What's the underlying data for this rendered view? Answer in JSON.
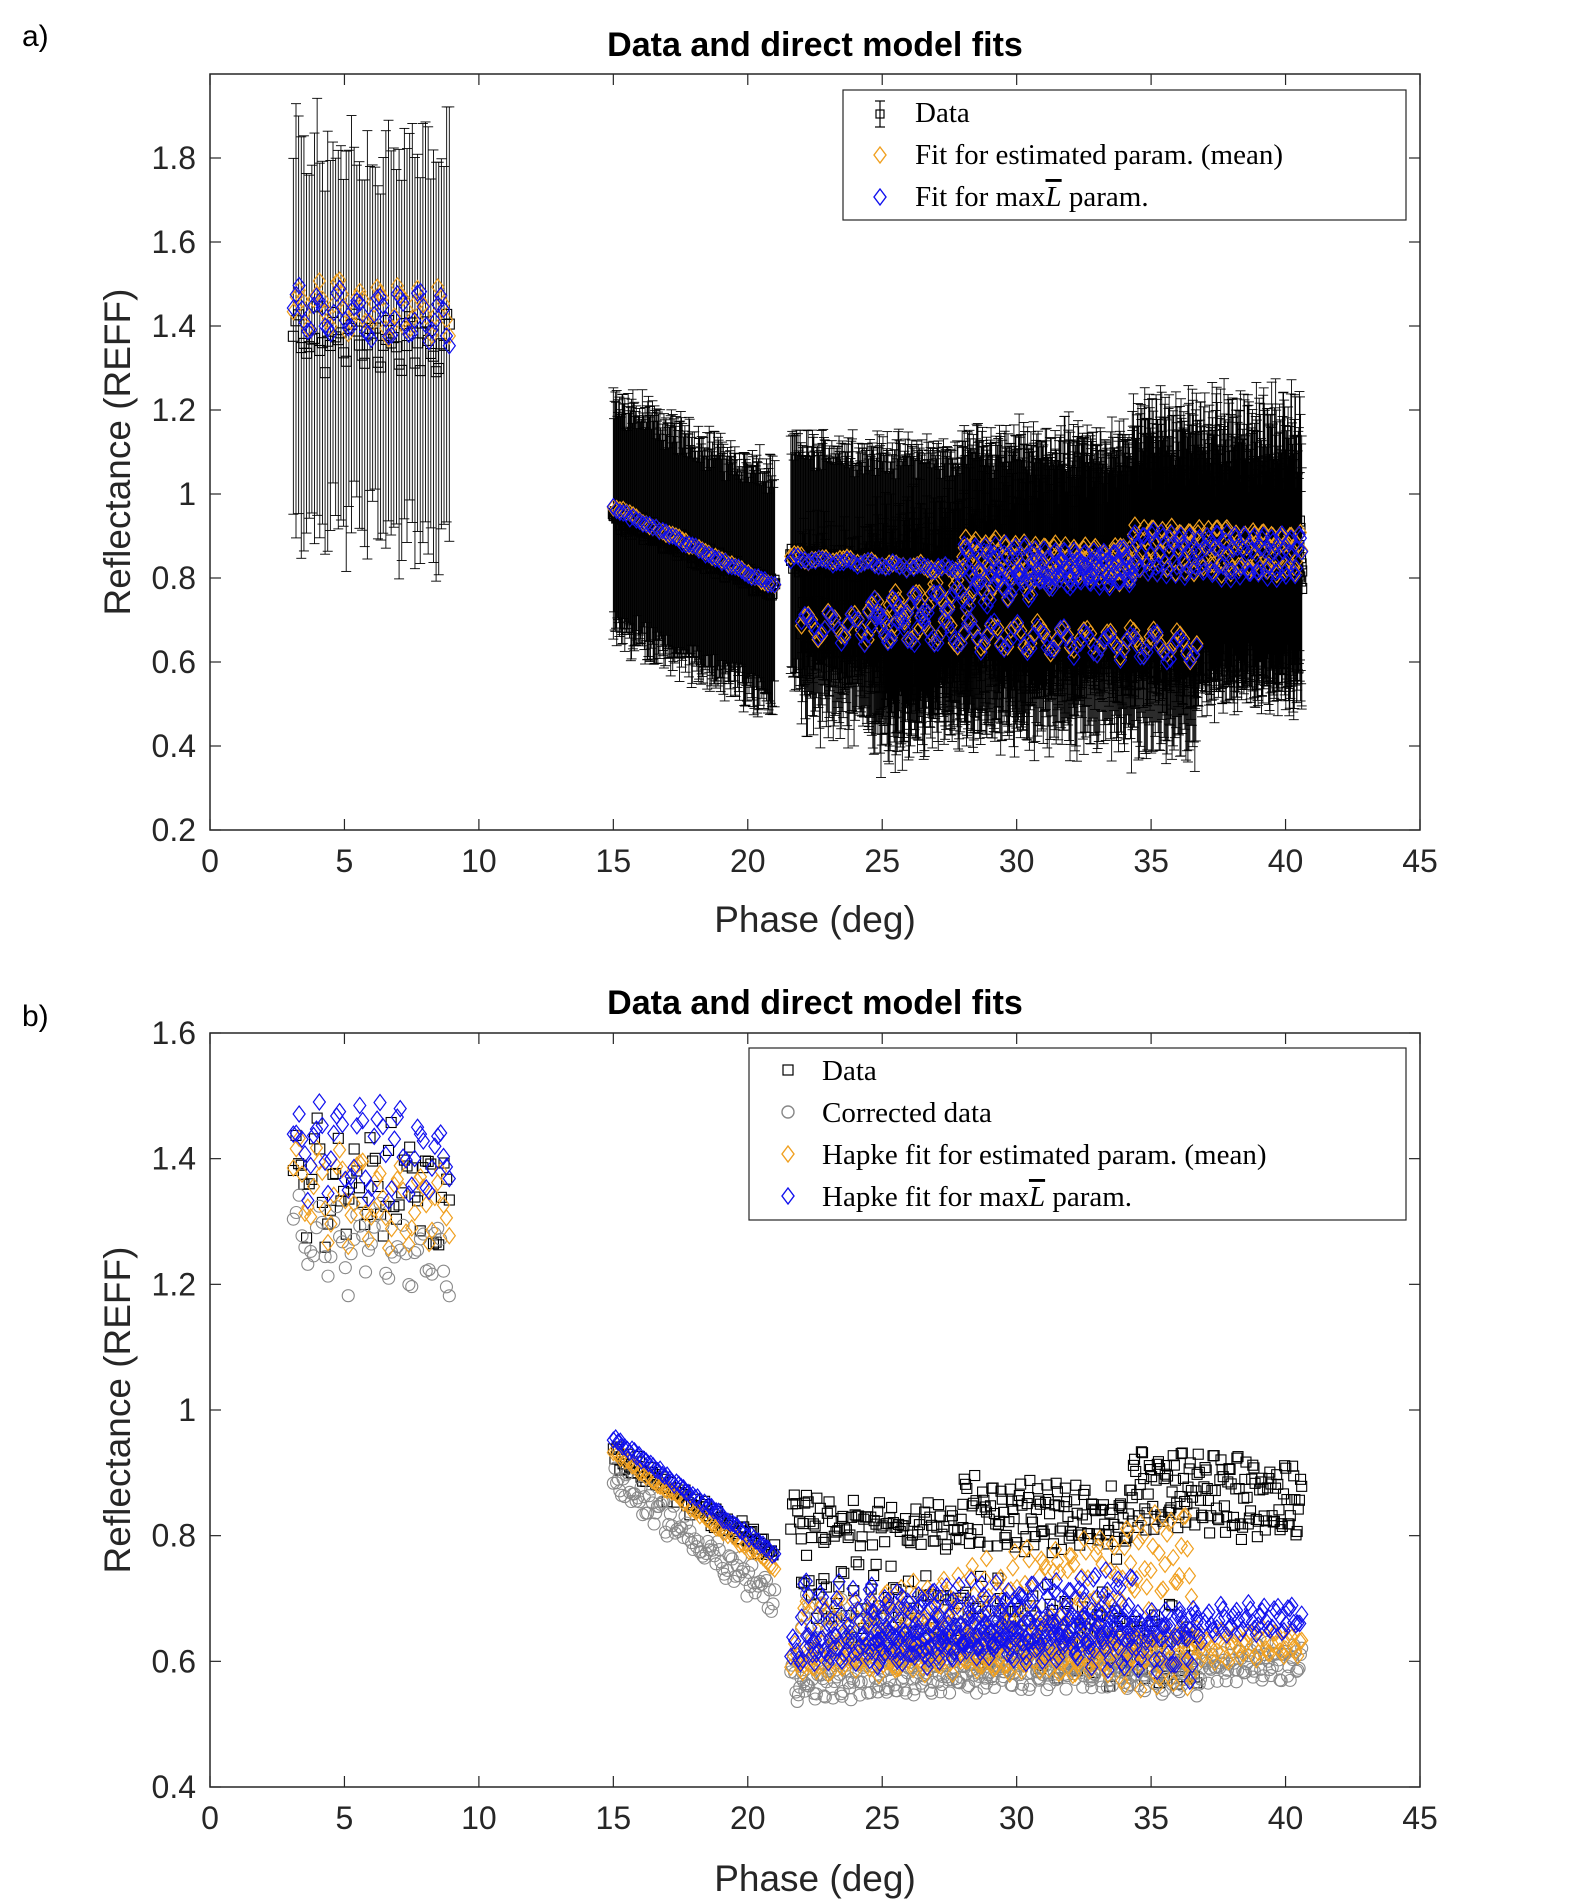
{
  "panels": [
    {
      "letter": "a)"
    },
    {
      "letter": "b)"
    }
  ],
  "colors": {
    "data": "#000000",
    "corrected": "#888888",
    "estimated": "#f0a020",
    "maxL": "#1010ee"
  },
  "chart_data": [
    {
      "type": "scatter",
      "title": "Data and direct model fits",
      "xlabel": "Phase (deg)",
      "ylabel": "Reflectance (REFF)",
      "xlim": [
        0,
        45
      ],
      "ylim": [
        0.2,
        2.0
      ],
      "xticks": [
        0,
        5,
        10,
        15,
        20,
        25,
        30,
        35,
        40,
        45
      ],
      "yticks": [
        0.2,
        0.4,
        0.6,
        0.8,
        1.0,
        1.2,
        1.4,
        1.6,
        1.8
      ],
      "ytick_labels": [
        "0.2",
        "0.4",
        "0.6",
        "0.8",
        "1",
        "1.2",
        "1.4",
        "1.6",
        "1.8"
      ],
      "legend_position": "top-right",
      "legend": [
        "Data",
        "Fit for estimated param. (mean)",
        "Fit for max̅L param."
      ],
      "legend_parts": [
        {
          "text": "Data"
        },
        {
          "text": "Fit for estimated param. (mean)"
        },
        {
          "text_before": "Fit for max",
          "symbol": "L",
          "text_after": " param."
        }
      ],
      "error_bars": true,
      "series": [
        {
          "name": "Data",
          "marker": "square",
          "color": "#000000",
          "segments": [
            {
              "x0": 3.1,
              "x1": 8.9,
              "n": 60,
              "y0": 1.36,
              "y1": 1.36,
              "osc": 0.05,
              "noise": 0.05,
              "err": 0.45
            },
            {
              "x0": 15.0,
              "x1": 21.0,
              "n": 240,
              "y0": 0.95,
              "y1": 0.77,
              "osc": 0.01,
              "noise": 0.02,
              "err": 0.27
            },
            {
              "x0": 21.6,
              "x1": 28.0,
              "n": 240,
              "y0": 0.84,
              "y1": 0.82,
              "osc": 0.01,
              "noise": 0.02,
              "err": 0.27
            },
            {
              "x0": 22.0,
              "x1": 36.7,
              "n": 400,
              "y0": 0.68,
              "y1": 0.62,
              "osc": 0.04,
              "noise": 0.03,
              "err": 0.2
            },
            {
              "x0": 24.5,
              "x1": 34.3,
              "n": 260,
              "y0": 0.66,
              "y1": 0.84,
              "osc": 0.05,
              "noise": 0.03,
              "err": 0.25
            },
            {
              "x0": 28.0,
              "x1": 34.3,
              "n": 260,
              "y0": 0.84,
              "y1": 0.83,
              "osc": 0.03,
              "noise": 0.03,
              "err": 0.27
            },
            {
              "x0": 34.3,
              "x1": 40.6,
              "n": 300,
              "y0": 0.87,
              "y1": 0.86,
              "osc": 0.05,
              "noise": 0.03,
              "err": 0.3
            },
            {
              "x0": 34.3,
              "x1": 40.6,
              "n": 180,
              "y0": 0.8,
              "y1": 0.8,
              "osc": 0.02,
              "noise": 0.02,
              "err": 0.25
            }
          ]
        },
        {
          "name": "Fit for estimated param. (mean)",
          "marker": "diamond",
          "color": "#f0a020",
          "segments": [
            {
              "x0": 3.1,
              "x1": 8.9,
              "n": 55,
              "y0": 1.45,
              "y1": 1.43,
              "osc": 0.05,
              "noise": 0.02
            },
            {
              "x0": 15.0,
              "x1": 21.0,
              "n": 50,
              "y0": 0.97,
              "y1": 0.78,
              "osc": 0.0,
              "noise": 0.005
            },
            {
              "x0": 21.6,
              "x1": 28.0,
              "n": 50,
              "y0": 0.85,
              "y1": 0.82,
              "osc": 0.005,
              "noise": 0.005
            },
            {
              "x0": 22.0,
              "x1": 36.7,
              "n": 120,
              "y0": 0.69,
              "y1": 0.64,
              "osc": 0.03,
              "noise": 0.01
            },
            {
              "x0": 24.5,
              "x1": 34.3,
              "n": 90,
              "y0": 0.72,
              "y1": 0.85,
              "osc": 0.03,
              "noise": 0.01
            },
            {
              "x0": 28.0,
              "x1": 34.3,
              "n": 120,
              "y0": 0.85,
              "y1": 0.83,
              "osc": 0.04,
              "noise": 0.01
            },
            {
              "x0": 34.3,
              "x1": 40.6,
              "n": 130,
              "y0": 0.87,
              "y1": 0.86,
              "osc": 0.05,
              "noise": 0.01
            }
          ]
        },
        {
          "name": "Fit for max̅L param.",
          "marker": "diamond",
          "color": "#1010ee",
          "segments": [
            {
              "x0": 3.1,
              "x1": 8.9,
              "n": 55,
              "y0": 1.43,
              "y1": 1.42,
              "osc": 0.05,
              "noise": 0.02
            },
            {
              "x0": 15.0,
              "x1": 21.0,
              "n": 50,
              "y0": 0.965,
              "y1": 0.78,
              "osc": 0.0,
              "noise": 0.005
            },
            {
              "x0": 21.6,
              "x1": 28.0,
              "n": 50,
              "y0": 0.845,
              "y1": 0.82,
              "osc": 0.005,
              "noise": 0.005
            },
            {
              "x0": 22.0,
              "x1": 36.7,
              "n": 120,
              "y0": 0.69,
              "y1": 0.63,
              "osc": 0.03,
              "noise": 0.01
            },
            {
              "x0": 24.5,
              "x1": 34.3,
              "n": 90,
              "y0": 0.71,
              "y1": 0.84,
              "osc": 0.03,
              "noise": 0.01
            },
            {
              "x0": 28.0,
              "x1": 34.3,
              "n": 120,
              "y0": 0.84,
              "y1": 0.82,
              "osc": 0.04,
              "noise": 0.01
            },
            {
              "x0": 34.3,
              "x1": 40.6,
              "n": 130,
              "y0": 0.86,
              "y1": 0.85,
              "osc": 0.05,
              "noise": 0.01
            }
          ]
        }
      ]
    },
    {
      "type": "scatter",
      "title": "Data and direct model fits",
      "xlabel": "Phase (deg)",
      "ylabel": "Reflectance (REFF)",
      "xlim": [
        0,
        45
      ],
      "ylim": [
        0.4,
        1.6
      ],
      "xticks": [
        0,
        5,
        10,
        15,
        20,
        25,
        30,
        35,
        40,
        45
      ],
      "yticks": [
        0.4,
        0.6,
        0.8,
        1.0,
        1.2,
        1.4,
        1.6
      ],
      "ytick_labels": [
        "0.4",
        "0.6",
        "0.8",
        "1",
        "1.2",
        "1.4",
        "1.6"
      ],
      "legend_position": "top-right",
      "legend": [
        "Data",
        "Corrected data",
        "Hapke fit for estimated param. (mean)",
        "Hapke fit for max̅L param."
      ],
      "legend_parts": [
        {
          "text": "Data"
        },
        {
          "text": "Corrected data"
        },
        {
          "text": "Hapke fit for estimated param. (mean)"
        },
        {
          "text_before": "Hapke fit for max",
          "symbol": "L",
          "text_after": " param."
        }
      ],
      "error_bars": false,
      "series": [
        {
          "name": "Data",
          "marker": "square",
          "color": "#000000",
          "segments": [
            {
              "x0": 3.1,
              "x1": 8.9,
              "n": 60,
              "y0": 1.37,
              "y1": 1.34,
              "osc": 0.06,
              "noise": 0.05
            },
            {
              "x0": 15.0,
              "x1": 21.0,
              "n": 100,
              "y0": 0.93,
              "y1": 0.77,
              "osc": 0.01,
              "noise": 0.015
            },
            {
              "x0": 21.6,
              "x1": 28.0,
              "n": 100,
              "y0": 0.83,
              "y1": 0.81,
              "osc": 0.02,
              "noise": 0.02
            },
            {
              "x0": 22.0,
              "x1": 36.7,
              "n": 160,
              "y0": 0.7,
              "y1": 0.62,
              "osc": 0.05,
              "noise": 0.03
            },
            {
              "x0": 28.0,
              "x1": 34.3,
              "n": 130,
              "y0": 0.84,
              "y1": 0.82,
              "osc": 0.04,
              "noise": 0.02
            },
            {
              "x0": 34.3,
              "x1": 40.6,
              "n": 150,
              "y0": 0.88,
              "y1": 0.85,
              "osc": 0.05,
              "noise": 0.02
            }
          ]
        },
        {
          "name": "Corrected data",
          "marker": "circle",
          "color": "#888888",
          "segments": [
            {
              "x0": 3.1,
              "x1": 8.9,
              "n": 55,
              "y0": 1.27,
              "y1": 1.24,
              "osc": 0.04,
              "noise": 0.04
            },
            {
              "x0": 15.0,
              "x1": 21.0,
              "n": 100,
              "y0": 0.89,
              "y1": 0.7,
              "osc": 0.01,
              "noise": 0.02
            },
            {
              "x0": 21.6,
              "x1": 40.6,
              "n": 400,
              "y0": 0.57,
              "y1": 0.6,
              "osc": 0.02,
              "noise": 0.015
            },
            {
              "x0": 22.0,
              "x1": 36.7,
              "n": 160,
              "y0": 0.66,
              "y1": 0.58,
              "osc": 0.03,
              "noise": 0.02
            }
          ]
        },
        {
          "name": "Hapke fit for estimated param. (mean)",
          "marker": "diamond",
          "color": "#f0a020",
          "segments": [
            {
              "x0": 3.1,
              "x1": 8.9,
              "n": 55,
              "y0": 1.36,
              "y1": 1.33,
              "osc": 0.06,
              "noise": 0.03
            },
            {
              "x0": 15.0,
              "x1": 21.0,
              "n": 70,
              "y0": 0.935,
              "y1": 0.75,
              "osc": 0.0,
              "noise": 0.005
            },
            {
              "x0": 21.6,
              "x1": 40.6,
              "n": 260,
              "y0": 0.6,
              "y1": 0.63,
              "osc": 0.02,
              "noise": 0.01
            },
            {
              "x0": 22.0,
              "x1": 36.7,
              "n": 170,
              "y0": 0.66,
              "y1": 0.6,
              "osc": 0.04,
              "noise": 0.015
            },
            {
              "x0": 24.5,
              "x1": 36.5,
              "n": 160,
              "y0": 0.64,
              "y1": 0.78,
              "osc": 0.06,
              "noise": 0.02
            }
          ]
        },
        {
          "name": "Hapke fit for max̅L param.",
          "marker": "diamond",
          "color": "#1010ee",
          "segments": [
            {
              "x0": 3.1,
              "x1": 8.9,
              "n": 55,
              "y0": 1.42,
              "y1": 1.4,
              "osc": 0.06,
              "noise": 0.03
            },
            {
              "x0": 15.0,
              "x1": 21.0,
              "n": 70,
              "y0": 0.955,
              "y1": 0.77,
              "osc": 0.0,
              "noise": 0.005
            },
            {
              "x0": 21.6,
              "x1": 40.6,
              "n": 260,
              "y0": 0.615,
              "y1": 0.67,
              "osc": 0.02,
              "noise": 0.01
            },
            {
              "x0": 22.0,
              "x1": 36.7,
              "n": 170,
              "y0": 0.68,
              "y1": 0.62,
              "osc": 0.04,
              "noise": 0.015
            },
            {
              "x0": 24.5,
              "x1": 34.3,
              "n": 150,
              "y0": 0.65,
              "y1": 0.69,
              "osc": 0.05,
              "noise": 0.02
            }
          ]
        }
      ]
    }
  ]
}
